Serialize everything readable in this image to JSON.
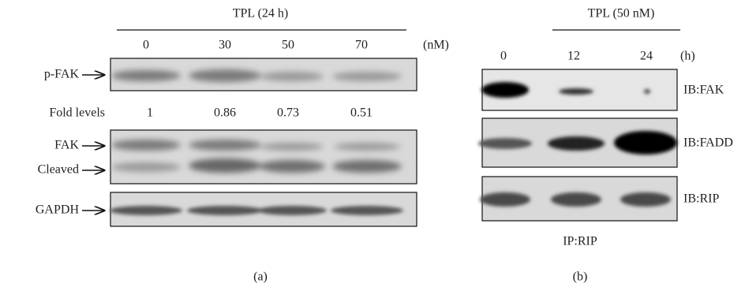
{
  "panel_a": {
    "header": "TPL (24 h)",
    "concentrations": [
      "0",
      "30",
      "50",
      "70"
    ],
    "concentration_unit": "(nM)",
    "blot_labels": [
      "p-FAK",
      "FAK",
      "Cleaved",
      "GAPDH"
    ],
    "fold_levels_label": "Fold levels",
    "fold_levels": [
      "1",
      "0.86",
      "0.73",
      "0.51"
    ],
    "caption": "(a)"
  },
  "panel_b": {
    "header": "TPL (50 nM)",
    "times": [
      "0",
      "12",
      "24"
    ],
    "time_unit": "(h)",
    "blot_labels": [
      "IB:FAK",
      "IB:FADD",
      "IB:RIP"
    ],
    "ip_label": "IP:RIP",
    "caption": "(b)"
  }
}
